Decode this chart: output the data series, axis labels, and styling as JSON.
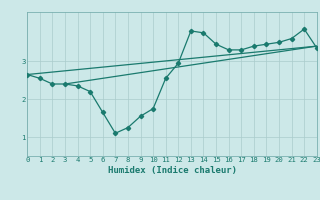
{
  "xlabel": "Humidex (Indice chaleur)",
  "bg_color": "#cce8e8",
  "line_color": "#1a7a6e",
  "grid_color": "#aacccc",
  "x_min": 0,
  "x_max": 23,
  "y_min": 0.5,
  "y_max": 4.3,
  "yticks": [
    1,
    2,
    3
  ],
  "xticks": [
    0,
    1,
    2,
    3,
    4,
    5,
    6,
    7,
    8,
    9,
    10,
    11,
    12,
    13,
    14,
    15,
    16,
    17,
    18,
    19,
    20,
    21,
    22,
    23
  ],
  "curve1_x": [
    0,
    1,
    2,
    3,
    4,
    5,
    6,
    7,
    8,
    9,
    10,
    11,
    12,
    13,
    14,
    15,
    16,
    17,
    18,
    19,
    20,
    21,
    22,
    23
  ],
  "curve1_y": [
    2.65,
    2.55,
    2.4,
    2.4,
    2.35,
    2.2,
    1.65,
    1.1,
    1.25,
    1.55,
    1.75,
    2.55,
    2.95,
    3.8,
    3.75,
    3.45,
    3.3,
    3.3,
    3.4,
    3.45,
    3.5,
    3.6,
    3.85,
    3.35
  ],
  "line1_x": [
    0,
    23
  ],
  "line1_y": [
    2.65,
    3.4
  ],
  "line2_x": [
    3,
    23
  ],
  "line2_y": [
    2.4,
    3.4
  ],
  "xlabel_fontsize": 6.5,
  "tick_fontsize": 5.2,
  "marker_size": 2.2,
  "line_width": 0.9
}
